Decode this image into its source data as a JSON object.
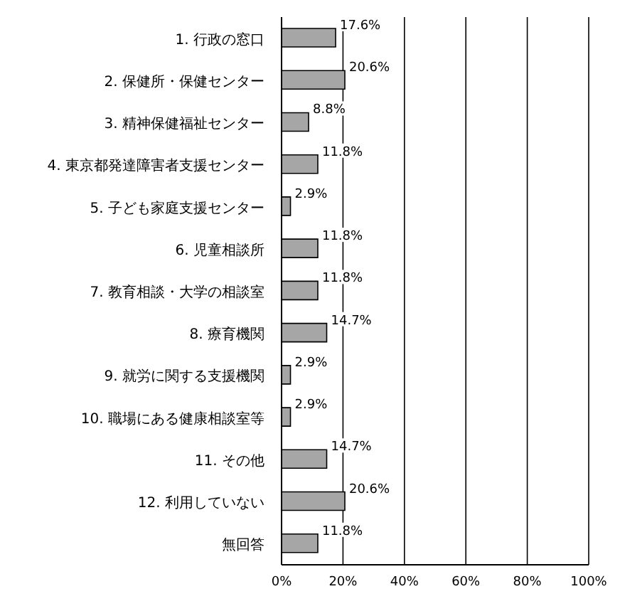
{
  "chart_data": {
    "type": "bar",
    "orientation": "horizontal",
    "categories": [
      "1. 行政の窓口",
      "2. 保健所・保健センター",
      "3. 精神保健福祉センター",
      "4. 東京都発達障害者支援センター",
      "5. 子ども家庭支援センター",
      "6. 児童相談所",
      "7. 教育相談・大学の相談室",
      "8. 療育機関",
      "9. 就労に関する支援機関",
      "10. 職場にある健康相談室等",
      "11. その他",
      "12. 利用していない",
      "無回答"
    ],
    "values": [
      17.6,
      20.6,
      8.8,
      11.8,
      2.9,
      11.8,
      11.8,
      14.7,
      2.9,
      2.9,
      14.7,
      20.6,
      11.8
    ],
    "value_labels": [
      "17.6%",
      "20.6%",
      "8.8%",
      "11.8%",
      "2.9%",
      "11.8%",
      "11.8%",
      "14.7%",
      "2.9%",
      "2.9%",
      "14.7%",
      "20.6%",
      "11.8%"
    ],
    "color": "#a6a6a6",
    "xlim": [
      0,
      100
    ],
    "xticks": [
      {
        "value": 0,
        "label": "0%"
      },
      {
        "value": 20,
        "label": "20%"
      },
      {
        "value": 40,
        "label": "40%"
      },
      {
        "value": 60,
        "label": "60%"
      },
      {
        "value": 80,
        "label": "80%"
      },
      {
        "value": 100,
        "label": "100%"
      }
    ],
    "grid": "x"
  }
}
